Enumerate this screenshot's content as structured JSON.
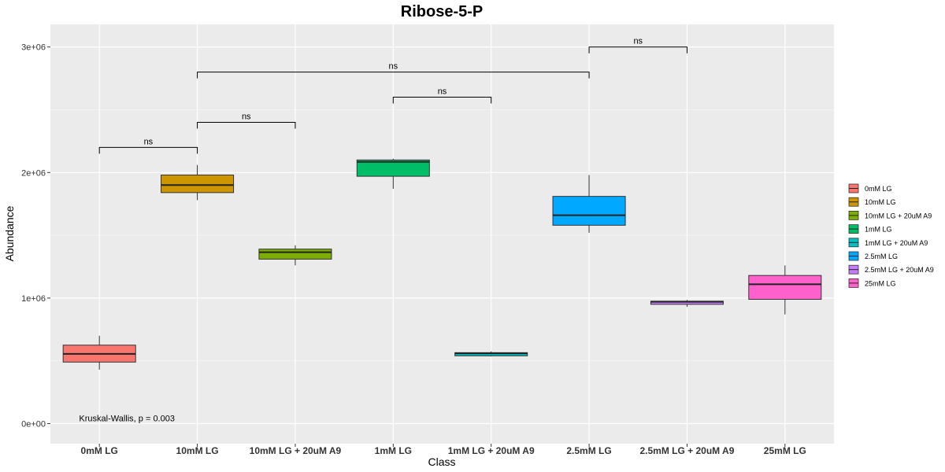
{
  "chart_data": {
    "type": "box",
    "title": "Ribose-5-P",
    "xlabel": "Class",
    "ylabel": "Abundance",
    "ylim": [
      -160000,
      3180000
    ],
    "y_ticks": [
      0,
      1000000,
      2000000,
      3000000
    ],
    "y_tick_labels": [
      "0e+00",
      "1e+06",
      "2e+06",
      "3e+06"
    ],
    "grid": true,
    "legend_position": "right",
    "categories": [
      "0mM LG",
      "10mM LG",
      "10mM LG + 20uM A9",
      "1mM LG",
      "1mM LG + 20uM A9",
      "2.5mM LG",
      "2.5mM LG + 20uM A9",
      "25mM LG"
    ],
    "colors": [
      "#F8766D",
      "#CD9600",
      "#7CAE00",
      "#00BE67",
      "#00BFC4",
      "#00A9FF",
      "#C77CFF",
      "#FF61CC"
    ],
    "boxes": [
      {
        "min": 430000,
        "q1": 490000,
        "median": 555000,
        "q3": 625000,
        "max": 700000
      },
      {
        "min": 1780000,
        "q1": 1840000,
        "median": 1900000,
        "q3": 1980000,
        "max": 2060000
      },
      {
        "min": 1260000,
        "q1": 1310000,
        "median": 1365000,
        "q3": 1390000,
        "max": 1420000
      },
      {
        "min": 1870000,
        "q1": 1970000,
        "median": 2085000,
        "q3": 2100000,
        "max": 2110000
      },
      {
        "min": 535000,
        "q1": 540000,
        "median": 560000,
        "q3": 565000,
        "max": 575000
      },
      {
        "min": 1520000,
        "q1": 1580000,
        "median": 1660000,
        "q3": 1810000,
        "max": 1980000
      },
      {
        "min": 930000,
        "q1": 950000,
        "median": 970000,
        "q3": 975000,
        "max": 985000
      },
      {
        "min": 870000,
        "q1": 990000,
        "median": 1110000,
        "q3": 1180000,
        "max": 1260000
      }
    ],
    "comparisons": [
      {
        "from": 0,
        "to": 1,
        "y": 2200000,
        "label": "ns"
      },
      {
        "from": 1,
        "to": 2,
        "y": 2400000,
        "label": "ns"
      },
      {
        "from": 3,
        "to": 4,
        "y": 2600000,
        "label": "ns"
      },
      {
        "from": 1,
        "to": 5,
        "y": 2800000,
        "label": "ns"
      },
      {
        "from": 5,
        "to": 6,
        "y": 3000000,
        "label": "ns"
      }
    ],
    "annotation": {
      "text": "Kruskal-Wallis, p = 0.003",
      "x_category": 0,
      "y": 20000
    }
  }
}
